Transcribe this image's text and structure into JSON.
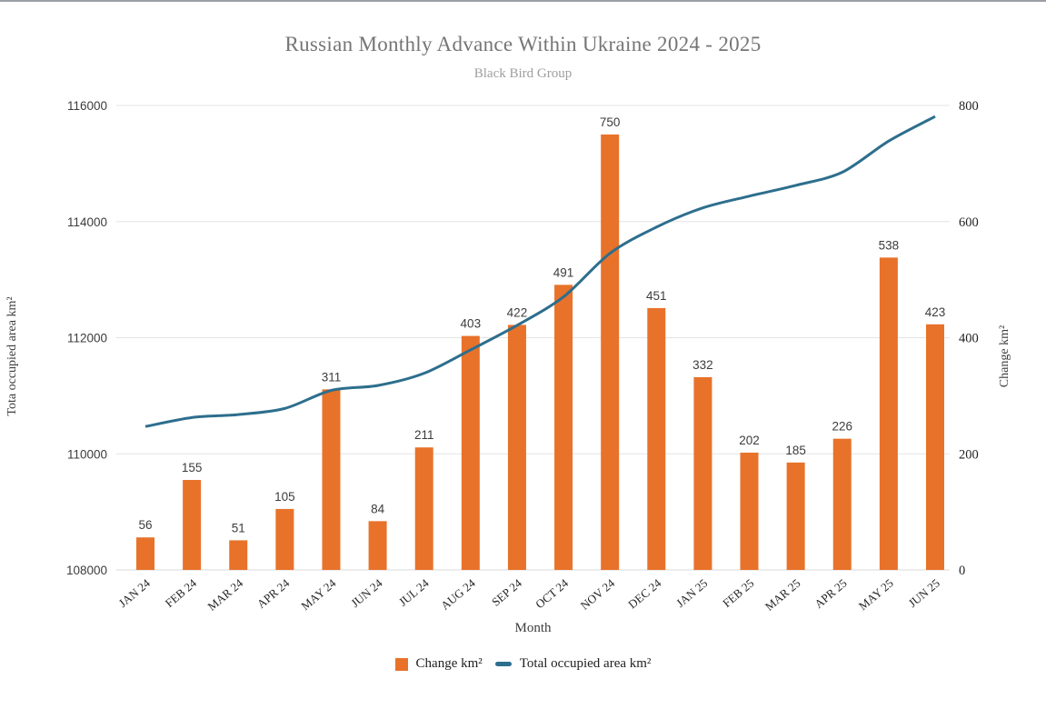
{
  "title": "Russian Monthly Advance Within Ukraine 2024 - 2025",
  "subtitle": "Black Bird Group",
  "chart_data": {
    "type": "combo-bar-line",
    "categories": [
      "JAN 24",
      "FEB 24",
      "MAR 24",
      "APR 24",
      "MAY 24",
      "JUN 24",
      "JUL 24",
      "AUG 24",
      "SEP 24",
      "OCT 24",
      "NOV 24",
      "DEC 24",
      "JAN 25",
      "FEB 25",
      "MAR 25",
      "APR 25",
      "MAY 25",
      "JUN 25"
    ],
    "series": [
      {
        "name": "Change km²",
        "type": "bar",
        "axis": "right",
        "color": "#e8722a",
        "values": [
          56,
          155,
          51,
          105,
          311,
          84,
          211,
          403,
          422,
          491,
          750,
          451,
          332,
          202,
          185,
          226,
          538,
          423
        ],
        "data_labels_shown": true
      },
      {
        "name": "Total occupied area km²",
        "type": "line",
        "axis": "left",
        "color": "#2d6e8d",
        "values": [
          110470,
          110625,
          110676,
          110781,
          111092,
          111176,
          111387,
          111790,
          112212,
          112703,
          113453,
          113904,
          114236,
          114438,
          114623,
          114849,
          115387,
          115810
        ],
        "values_note": "estimated from line position against left axis gridlines"
      }
    ],
    "left_axis": {
      "title": "Tota occupied area km²",
      "range": [
        108000,
        116000
      ],
      "ticks": [
        108000,
        110000,
        112000,
        114000,
        116000
      ]
    },
    "right_axis": {
      "title": "Change km²",
      "range": [
        0,
        800
      ],
      "ticks": [
        0,
        200,
        400,
        600,
        800
      ]
    },
    "x_axis": {
      "title": "Month",
      "tick_rotation_deg": -40
    },
    "legend_position": "bottom",
    "grid": "horizontal-only"
  },
  "colors": {
    "bar": "#e8722a",
    "line": "#2d6e8d",
    "grid": "#e4e4e4",
    "baseline": "#d9d9d9",
    "title": "#757575",
    "subtitle": "#9e9e9e",
    "left_tick_label": "#3c3c3c",
    "right_tick_label": "#1f1f1f",
    "bar_value_label": "#3c3c3c",
    "month_label": "#1f1f1f",
    "axis_title": "#3c3c3c",
    "top_border": "#9aa0a6",
    "background": "#ffffff"
  }
}
